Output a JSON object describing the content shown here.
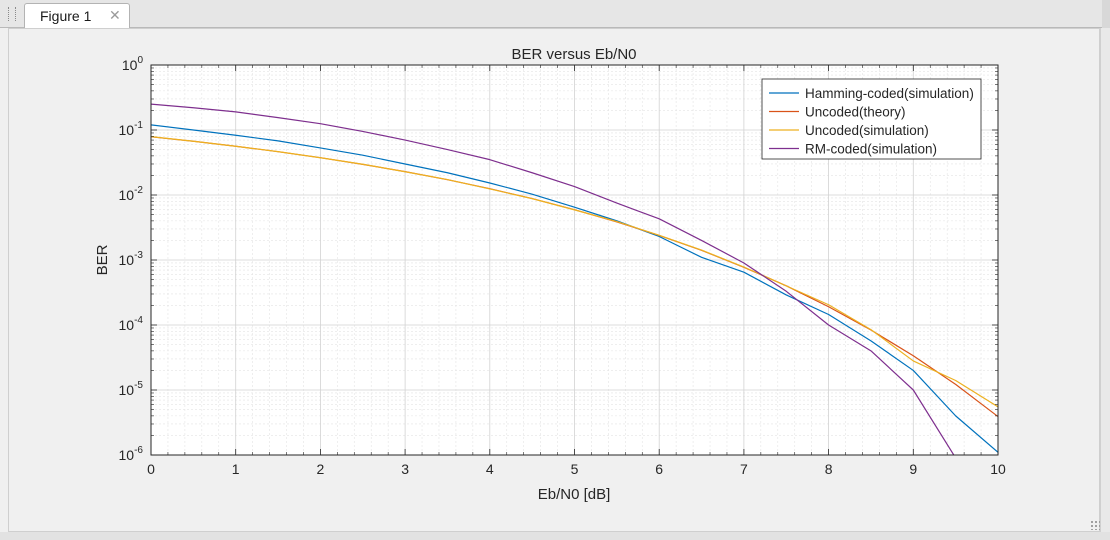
{
  "window": {
    "tab_label": "Figure 1",
    "close_glyph": "✕"
  },
  "chart_data": {
    "type": "line",
    "title": "BER versus Eb/N0",
    "xlabel": "Eb/N0 [dB]",
    "ylabel": "BER",
    "xlim": [
      0,
      10
    ],
    "ylim": [
      1e-06,
      1
    ],
    "yscale": "log",
    "grid": true,
    "minor_grid": true,
    "legend_position": "top-right",
    "x_ticks": [
      "0",
      "1",
      "2",
      "3",
      "4",
      "5",
      "6",
      "7",
      "8",
      "9",
      "10"
    ],
    "y_ticks": [
      {
        "base": "10",
        "exp": "0",
        "value": 1
      },
      {
        "base": "10",
        "exp": "-1",
        "value": 0.1
      },
      {
        "base": "10",
        "exp": "-2",
        "value": 0.01
      },
      {
        "base": "10",
        "exp": "-3",
        "value": 0.001
      },
      {
        "base": "10",
        "exp": "-4",
        "value": 0.0001
      },
      {
        "base": "10",
        "exp": "-5",
        "value": 1e-05
      },
      {
        "base": "10",
        "exp": "-6",
        "value": 1e-06
      }
    ],
    "series": [
      {
        "name": "Hamming-coded(simulation)",
        "color": "#0072bd",
        "x": [
          0,
          0.5,
          1,
          1.5,
          2,
          2.5,
          3,
          3.5,
          4,
          4.5,
          5,
          5.5,
          6,
          6.5,
          7,
          7.5,
          8,
          8.5,
          9,
          9.5,
          10
        ],
        "y": [
          0.12,
          0.1,
          0.083,
          0.068,
          0.053,
          0.041,
          0.03,
          0.022,
          0.0153,
          0.0103,
          0.0065,
          0.004,
          0.0023,
          0.0011,
          0.00065,
          0.00029,
          0.000145,
          5.7e-05,
          2e-05,
          4e-06,
          1.1e-06
        ]
      },
      {
        "name": "Uncoded(theory)",
        "color": "#d95319",
        "x": [
          0,
          0.5,
          1,
          1.5,
          2,
          2.5,
          3,
          3.5,
          4,
          4.5,
          5,
          5.5,
          6,
          6.5,
          7,
          7.5,
          8,
          8.5,
          9,
          9.5,
          10
        ],
        "y": [
          0.0786,
          0.0671,
          0.0563,
          0.0464,
          0.0375,
          0.0296,
          0.0229,
          0.0172,
          0.0125,
          0.00881,
          0.00595,
          0.00386,
          0.00239,
          0.00141,
          0.000773,
          0.000401,
          0.000191,
          8.37e-05,
          3.36e-05,
          1.22e-05,
          3.9e-06
        ]
      },
      {
        "name": "Uncoded(simulation)",
        "color": "#edb120",
        "x": [
          0,
          0.5,
          1,
          1.5,
          2,
          2.5,
          3,
          3.5,
          4,
          4.5,
          5,
          5.5,
          6,
          6.5,
          7,
          7.5,
          8,
          8.5,
          9,
          9.5,
          10
        ],
        "y": [
          0.079,
          0.0672,
          0.0562,
          0.0465,
          0.0374,
          0.0297,
          0.0228,
          0.0173,
          0.0124,
          0.0088,
          0.0059,
          0.0039,
          0.0024,
          0.00142,
          0.00078,
          0.0004,
          0.000205,
          8.5e-05,
          2.8e-05,
          1.4e-05,
          5.5e-06
        ]
      },
      {
        "name": "RM-coded(simulation)",
        "color": "#7e2f8e",
        "x": [
          0,
          0.5,
          1,
          1.5,
          2,
          2.5,
          3,
          3.5,
          4,
          4.5,
          5,
          5.5,
          6,
          6.5,
          7,
          7.5,
          8,
          8.5,
          9,
          9.5
        ],
        "y": [
          0.25,
          0.22,
          0.19,
          0.155,
          0.125,
          0.095,
          0.07,
          0.05,
          0.035,
          0.022,
          0.0135,
          0.0075,
          0.0043,
          0.002,
          0.0009,
          0.00033,
          0.0001,
          4e-05,
          1e-05,
          9e-07
        ]
      }
    ]
  }
}
